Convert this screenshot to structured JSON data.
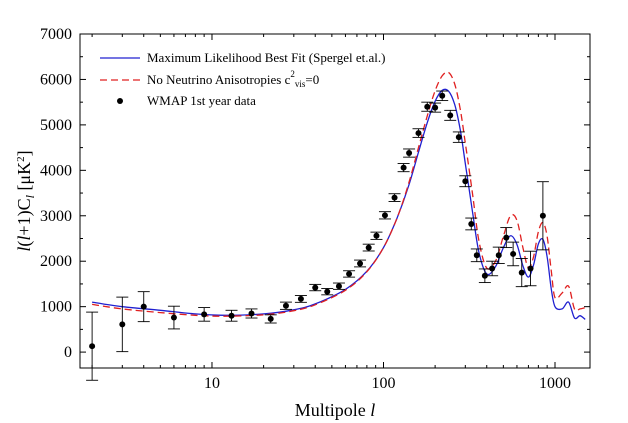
{
  "chart_data": {
    "type": "line",
    "xscale": "log",
    "xlim": [
      1.7,
      1600
    ],
    "ylim": [
      -350,
      7000
    ],
    "xlabel_text": "Multipole ",
    "xlabel_var": "l",
    "ylabel": "l(l+1)C_l [μK²]",
    "xticks": [
      10,
      100,
      1000
    ],
    "xtick_labels": [
      "10",
      "100",
      "1000"
    ],
    "yticks": [
      0,
      1000,
      2000,
      3000,
      4000,
      5000,
      6000,
      7000
    ],
    "ytick_labels": [
      "0",
      "1000",
      "2000",
      "3000",
      "4000",
      "5000",
      "6000",
      "7000"
    ],
    "legend_position": "top-left",
    "series": [
      {
        "name": "Maximum Likelihood Best Fit (Spergel et.al.)",
        "style": "solid",
        "color": "#2020d0",
        "x": [
          2,
          3,
          5,
          8,
          12,
          20,
          30,
          40,
          60,
          80,
          100,
          120,
          140,
          160,
          180,
          200,
          220,
          240,
          260,
          280,
          300,
          330,
          360,
          400,
          450,
          500,
          550,
          600,
          650,
          700,
          750,
          800,
          850,
          900,
          950,
          1000,
          1100,
          1200,
          1300,
          1400,
          1500
        ],
        "y": [
          1100,
          1000,
          920,
          840,
          810,
          840,
          930,
          1060,
          1380,
          1780,
          2300,
          2950,
          3650,
          4400,
          5050,
          5520,
          5760,
          5740,
          5450,
          4900,
          4150,
          3100,
          2200,
          1720,
          1880,
          2300,
          2560,
          2370,
          1900,
          1650,
          1920,
          2380,
          2480,
          2100,
          1400,
          1000,
          950,
          1100,
          750,
          800,
          720
        ]
      },
      {
        "name": "No Neutrino Anisotropies c²_vis=0",
        "style": "dashed",
        "color": "#e02020",
        "x": [
          2,
          3,
          5,
          8,
          12,
          20,
          30,
          40,
          60,
          80,
          100,
          120,
          140,
          160,
          180,
          200,
          220,
          240,
          260,
          280,
          300,
          330,
          360,
          400,
          450,
          500,
          550,
          600,
          650,
          700,
          750,
          800,
          850,
          900,
          950,
          1000,
          1100,
          1200,
          1300,
          1400,
          1500
        ],
        "y": [
          1050,
          950,
          870,
          810,
          790,
          820,
          910,
          1040,
          1360,
          1770,
          2300,
          2950,
          3700,
          4500,
          5200,
          5750,
          6080,
          6150,
          5900,
          5350,
          4600,
          3500,
          2450,
          1850,
          2000,
          2550,
          3000,
          2900,
          2300,
          1850,
          2100,
          2650,
          2850,
          2550,
          1800,
          1200,
          1300,
          1450,
          950,
          950,
          980
        ]
      }
    ],
    "data_points": {
      "name": "WMAP 1st year data",
      "color": "#000000",
      "points": [
        {
          "x": 2,
          "y": 130,
          "err": 750
        },
        {
          "x": 3,
          "y": 610,
          "err": 600
        },
        {
          "x": 4,
          "y": 1000,
          "err": 330
        },
        {
          "x": 6,
          "y": 760,
          "err": 250
        },
        {
          "x": 9,
          "y": 830,
          "err": 150
        },
        {
          "x": 13,
          "y": 800,
          "err": 120
        },
        {
          "x": 17,
          "y": 850,
          "err": 100
        },
        {
          "x": 22,
          "y": 730,
          "err": 90
        },
        {
          "x": 27,
          "y": 1020,
          "err": 80
        },
        {
          "x": 33,
          "y": 1170,
          "err": 75
        },
        {
          "x": 40,
          "y": 1420,
          "err": 70
        },
        {
          "x": 47,
          "y": 1330,
          "err": 70
        },
        {
          "x": 55,
          "y": 1450,
          "err": 70
        },
        {
          "x": 63,
          "y": 1720,
          "err": 70
        },
        {
          "x": 73,
          "y": 1950,
          "err": 75
        },
        {
          "x": 82,
          "y": 2300,
          "err": 75
        },
        {
          "x": 91,
          "y": 2560,
          "err": 80
        },
        {
          "x": 102,
          "y": 3010,
          "err": 80
        },
        {
          "x": 116,
          "y": 3400,
          "err": 85
        },
        {
          "x": 131,
          "y": 4060,
          "err": 90
        },
        {
          "x": 141,
          "y": 4380,
          "err": 90
        },
        {
          "x": 160,
          "y": 4820,
          "err": 95
        },
        {
          "x": 180,
          "y": 5400,
          "err": 100
        },
        {
          "x": 200,
          "y": 5380,
          "err": 100
        },
        {
          "x": 220,
          "y": 5640,
          "err": 105
        },
        {
          "x": 245,
          "y": 5210,
          "err": 110
        },
        {
          "x": 275,
          "y": 4730,
          "err": 115
        },
        {
          "x": 300,
          "y": 3760,
          "err": 120
        },
        {
          "x": 325,
          "y": 2820,
          "err": 130
        },
        {
          "x": 350,
          "y": 2130,
          "err": 140
        },
        {
          "x": 390,
          "y": 1680,
          "err": 150
        },
        {
          "x": 430,
          "y": 1840,
          "err": 160
        },
        {
          "x": 470,
          "y": 2130,
          "err": 180
        },
        {
          "x": 520,
          "y": 2520,
          "err": 220
        },
        {
          "x": 570,
          "y": 2160,
          "err": 260
        },
        {
          "x": 640,
          "y": 1750,
          "err": 310
        },
        {
          "x": 720,
          "y": 1840,
          "err": 380
        },
        {
          "x": 850,
          "y": 3000,
          "err": 750
        }
      ]
    }
  }
}
